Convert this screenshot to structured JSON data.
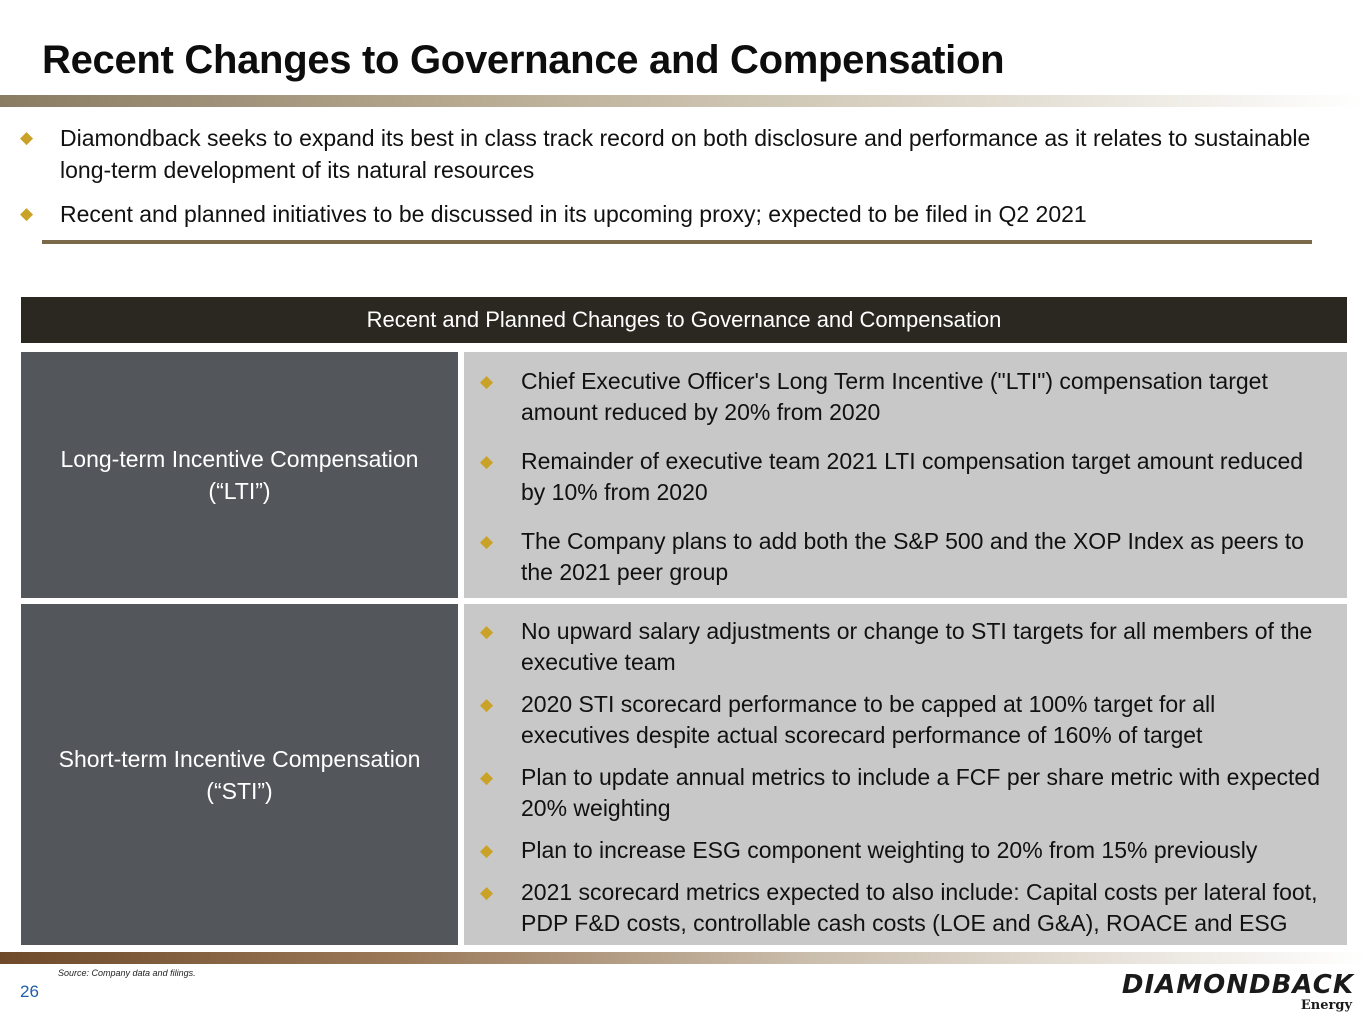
{
  "title": "Recent Changes to Governance and Compensation",
  "intro_bullets": [
    "Diamondback seeks to expand its best in class track record on both disclosure and performance as it relates to sustainable long-term development of its natural resources",
    "Recent and planned initiatives to be discussed in its upcoming proxy; expected to be filed in Q2 2021"
  ],
  "table": {
    "header": "Recent and Planned Changes to Governance and Compensation",
    "lti": {
      "label_line1": "Long-term Incentive Compensation",
      "label_line2": "(“LTI”)",
      "items": [
        "Chief Executive Officer's Long Term Incentive (\"LTI\") compensation target amount reduced by 20% from 2020",
        "Remainder of executive team 2021 LTI compensation target amount reduced by 10% from 2020",
        "The Company plans to add both the S&P 500 and the XOP Index as peers to the 2021 peer group"
      ]
    },
    "sti": {
      "label_line1": "Short-term Incentive Compensation",
      "label_line2": "(“STI”)",
      "items": [
        "No upward salary adjustments or change to STI targets for all members of the executive team",
        "2020 STI scorecard performance to be capped at 100% target for all executives despite actual scorecard performance of 160% of target",
        "Plan to update annual metrics to include a FCF per share metric with expected 20% weighting",
        "Plan to increase ESG component weighting to 20% from 15% previously",
        "2021 scorecard metrics expected to also include: Capital costs per lateral foot, PDP F&D costs, controllable cash costs (LOE and G&A), ROACE and ESG"
      ]
    }
  },
  "footer": {
    "source": "Source: Company data and filings.",
    "page_number": "26",
    "logo_main": "DIAMONDBACK",
    "logo_sub": "Energy"
  },
  "icons": {
    "bullet": "diamond-bullet-icon"
  },
  "colors": {
    "accent": "#c9a227",
    "header_bg": "#2a2820",
    "label_bg": "#53565b",
    "body_bg": "#c8c8c8"
  }
}
